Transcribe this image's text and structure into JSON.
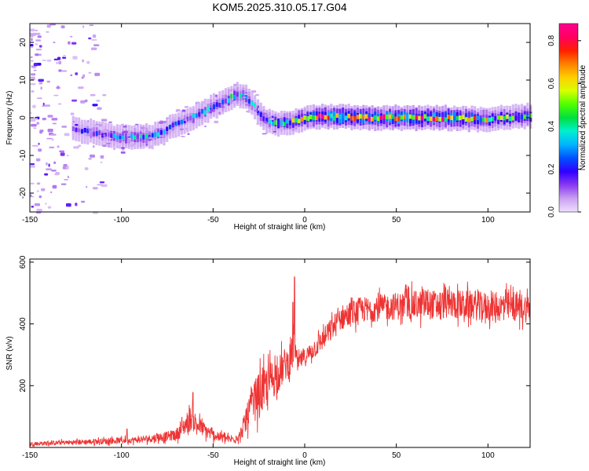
{
  "title": "KOM5.2025.310.05.17.G04",
  "chart_data": [
    {
      "type": "heatmap",
      "title": "KOM5.2025.310.05.17.G04",
      "xlabel": "Height of straight line (km)",
      "ylabel": "Frequency (Hz)",
      "xlim": [
        -150,
        123
      ],
      "ylim": [
        -25,
        25
      ],
      "xticks": [
        -150,
        -100,
        -50,
        0,
        50,
        100
      ],
      "yticks": [
        -20,
        -10,
        0,
        10,
        20
      ],
      "colorbar": {
        "label": "Normalized spectral amplitude",
        "range": [
          0,
          0.88
        ],
        "ticks": [
          0.0,
          0.2,
          0.4,
          0.6,
          0.8
        ],
        "colors": [
          "#f0e0ff",
          "#c9a0f0",
          "#8a3af0",
          "#3000ff",
          "#0050ff",
          "#00b4ff",
          "#00f0d0",
          "#00e040",
          "#50ff00",
          "#d8ff00",
          "#ffd000",
          "#ff8000",
          "#ff2000",
          "#ff0060",
          "#ff0090"
        ]
      },
      "ridge_center": {
        "x": [
          -126,
          -115,
          -105,
          -95,
          -85,
          -78,
          -72,
          -65,
          -58,
          -50,
          -44,
          -38,
          -33,
          -28,
          -24,
          -20,
          -15,
          -10,
          -5,
          0,
          10,
          25,
          40,
          55,
          70,
          85,
          100,
          110,
          123
        ],
        "y": [
          -3,
          -4,
          -5,
          -5.3,
          -5,
          -4,
          -2,
          -0.5,
          1,
          3,
          4.5,
          6,
          5.5,
          3,
          0,
          -1,
          -1.5,
          -1.3,
          -0.8,
          0,
          0.2,
          0.2,
          0,
          0,
          0,
          -0.2,
          -0.4,
          0,
          0.6
        ]
      },
      "ridge_amplitude": {
        "x": [
          -130,
          -120,
          -110,
          -95,
          -85,
          -75,
          -60,
          -45,
          -35,
          -25,
          -20,
          -10,
          0,
          10,
          30,
          50,
          70,
          80,
          90,
          100,
          110,
          123
        ],
        "a": [
          0.12,
          0.2,
          0.28,
          0.38,
          0.35,
          0.25,
          0.3,
          0.35,
          0.4,
          0.3,
          0.45,
          0.5,
          0.6,
          0.86,
          0.8,
          0.82,
          0.86,
          0.8,
          0.72,
          0.55,
          0.5,
          0.45
        ]
      }
    },
    {
      "type": "line",
      "xlabel": "Height of straight line (km)",
      "ylabel": "SNR (v/v)",
      "xlim": [
        -150,
        123
      ],
      "ylim": [
        0,
        610
      ],
      "xticks": [
        -150,
        -100,
        -50,
        0,
        50,
        100
      ],
      "yticks": [
        200,
        400,
        600
      ],
      "line_color": "#ee3333",
      "envelope": {
        "x": [
          -150,
          -120,
          -90,
          -70,
          -62,
          -58,
          -50,
          -40,
          -35,
          -30,
          -26,
          -22,
          -18,
          -14,
          -10,
          -8,
          -6,
          -5,
          -4,
          -2,
          0,
          5,
          10,
          20,
          30,
          40,
          50,
          60,
          70,
          80,
          90,
          100,
          110,
          123
        ],
        "mean": [
          12,
          18,
          25,
          40,
          95,
          70,
          40,
          25,
          40,
          120,
          165,
          185,
          220,
          240,
          275,
          270,
          330,
          310,
          265,
          285,
          290,
          320,
          350,
          420,
          445,
          450,
          458,
          460,
          462,
          465,
          460,
          455,
          455,
          452
        ],
        "spread": [
          10,
          15,
          18,
          30,
          70,
          50,
          30,
          20,
          30,
          90,
          120,
          120,
          110,
          100,
          90,
          80,
          120,
          60,
          40,
          50,
          50,
          55,
          60,
          70,
          70,
          70,
          75,
          80,
          80,
          80,
          80,
          80,
          80,
          80
        ]
      },
      "peaks": [
        {
          "x": -5.5,
          "y": 552
        },
        {
          "x": -6.5,
          "y": 470
        },
        {
          "x": -61,
          "y": 178
        },
        {
          "x": -97,
          "y": 60
        }
      ]
    }
  ]
}
